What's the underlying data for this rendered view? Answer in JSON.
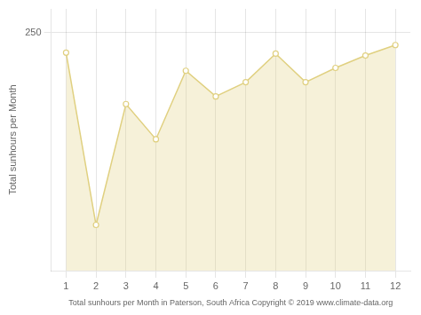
{
  "chart_data": {
    "type": "area",
    "x": [
      1,
      2,
      3,
      4,
      5,
      6,
      7,
      8,
      9,
      10,
      11,
      12
    ],
    "values": [
      229,
      48,
      175,
      138,
      210,
      183,
      198,
      228,
      198,
      213,
      226,
      237
    ],
    "color": "#E0D080",
    "marker": "circle",
    "xlabel": "Total sunhours per Month in Paterson, South Africa Copyright © 2019 www.climate-data.org",
    "ylabel": "Total sunhours per Month",
    "xlim": [
      0.5,
      12.5
    ],
    "ylim": [
      0,
      275
    ],
    "xticks": [
      1,
      2,
      3,
      4,
      5,
      6,
      7,
      8,
      9,
      10,
      11,
      12
    ],
    "yticks": [
      250
    ],
    "grid": true
  }
}
